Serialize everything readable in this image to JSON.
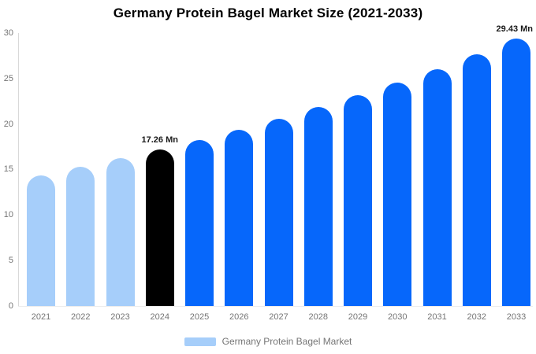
{
  "title": "Germany Protein Bagel Market Size (2021-2033)",
  "legend": {
    "label": "Germany Protein Bagel Market",
    "swatch_color": "#a6cefa"
  },
  "colors": {
    "historical_bar": "#a6cefa",
    "highlight_bar": "#000000",
    "forecast_bar": "#0667fb",
    "axis_text": "#757575",
    "axis_line": "#d9d9d9",
    "annotation_text": "#1a1a1a",
    "background": "#ffffff"
  },
  "chart_data": {
    "type": "bar",
    "title": "Germany Protein Bagel Market Size (2021-2033)",
    "unit": "Mn",
    "categories": [
      "2021",
      "2022",
      "2023",
      "2024",
      "2025",
      "2026",
      "2027",
      "2028",
      "2029",
      "2030",
      "2031",
      "2032",
      "2033"
    ],
    "values": [
      14.4,
      15.3,
      16.3,
      17.26,
      18.3,
      19.4,
      20.6,
      21.9,
      23.2,
      24.6,
      26.1,
      27.7,
      29.43
    ],
    "bar_colors": [
      "#a6cefa",
      "#a6cefa",
      "#a6cefa",
      "#000000",
      "#0667fb",
      "#0667fb",
      "#0667fb",
      "#0667fb",
      "#0667fb",
      "#0667fb",
      "#0667fb",
      "#0667fb",
      "#0667fb"
    ],
    "annotations": [
      {
        "category": "2024",
        "text": "17.26 Mn"
      },
      {
        "category": "2033",
        "text": "29.43 Mn"
      }
    ],
    "xlabel": "",
    "ylabel": "",
    "yticks": [
      0,
      5,
      10,
      15,
      20,
      25,
      30
    ],
    "ylim": [
      0,
      30
    ],
    "grid": false,
    "legend_position": "bottom",
    "legend_entries": [
      "Germany Protein Bagel Market"
    ]
  }
}
